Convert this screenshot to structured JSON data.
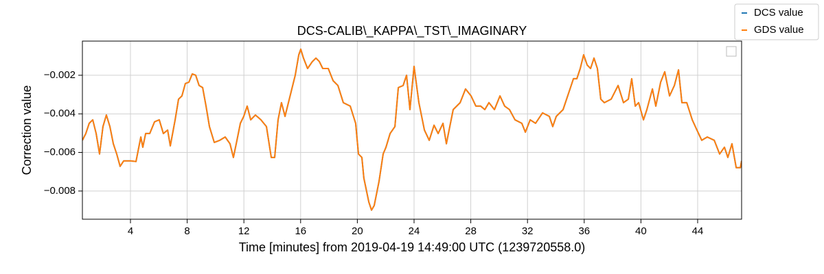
{
  "chart_data": {
    "type": "line",
    "title": "DCS-CALIB\\_KAPPA\\_TST\\_IMAGINARY",
    "x_label": "Time [minutes] from 2019-04-19 14:49:00 UTC (1239720558.0)",
    "y_label": "Correction value",
    "xlim": [
      0.61,
      47.1
    ],
    "ylim": [
      -0.00946,
      -0.00023
    ],
    "xticks": [
      4,
      8,
      12,
      16,
      20,
      24,
      28,
      32,
      36,
      40,
      44
    ],
    "yticks": [
      {
        "value": -0.002,
        "label": "−0.002"
      },
      {
        "value": -0.004,
        "label": "−0.004"
      },
      {
        "value": -0.006,
        "label": "−0.006"
      },
      {
        "value": -0.008,
        "label": "−0.008"
      }
    ],
    "grid": true,
    "legend": "upper right",
    "x": [
      0.61,
      0.85,
      1.09,
      1.34,
      1.58,
      1.82,
      2.06,
      2.3,
      2.55,
      2.79,
      3.03,
      3.27,
      3.52,
      4.0,
      4.39,
      4.73,
      4.87,
      5.07,
      5.36,
      5.7,
      6.03,
      6.32,
      6.62,
      6.81,
      7.15,
      7.39,
      7.63,
      7.87,
      8.12,
      8.36,
      8.6,
      8.84,
      9.09,
      9.33,
      9.57,
      9.91,
      10.3,
      10.68,
      11.02,
      11.26,
      11.51,
      11.75,
      11.99,
      12.23,
      12.48,
      12.81,
      13.2,
      13.59,
      13.93,
      14.17,
      14.41,
      14.65,
      14.9,
      15.14,
      15.38,
      15.62,
      15.87,
      16.01,
      16.2,
      16.49,
      16.83,
      17.08,
      17.32,
      17.56,
      17.95,
      18.29,
      18.63,
      19.01,
      19.5,
      19.88,
      20.08,
      20.32,
      20.46,
      20.81,
      21.0,
      21.19,
      21.53,
      21.82,
      22.02,
      22.31,
      22.65,
      22.89,
      23.23,
      23.47,
      23.71,
      24.0,
      24.34,
      24.73,
      25.07,
      25.41,
      25.7,
      26.04,
      26.28,
      26.76,
      27.25,
      27.63,
      28.02,
      28.36,
      28.7,
      28.99,
      29.28,
      29.67,
      30.06,
      30.39,
      30.73,
      31.12,
      31.6,
      31.85,
      32.19,
      32.57,
      33.06,
      33.54,
      33.78,
      34.03,
      34.51,
      35.0,
      35.24,
      35.48,
      35.72,
      35.96,
      36.21,
      36.45,
      36.69,
      36.93,
      37.17,
      37.42,
      37.9,
      38.39,
      38.77,
      39.11,
      39.35,
      39.6,
      39.84,
      40.18,
      40.42,
      40.81,
      41.05,
      41.39,
      41.68,
      42.02,
      42.36,
      42.65,
      42.89,
      43.23,
      43.62,
      43.95,
      44.29,
      44.68,
      45.17,
      45.55,
      45.89,
      46.13,
      46.42,
      46.72,
      47.01,
      47.1
    ],
    "series": [
      {
        "name": "DCS value",
        "color": "#1f77b4",
        "values": [
          -0.00537,
          -0.00502,
          -0.00449,
          -0.00431,
          -0.00502,
          -0.00608,
          -0.00466,
          -0.00406,
          -0.00466,
          -0.00555,
          -0.00608,
          -0.00672,
          -0.00644,
          -0.00644,
          -0.00647,
          -0.0052,
          -0.00573,
          -0.00502,
          -0.00502,
          -0.00441,
          -0.00431,
          -0.00502,
          -0.00484,
          -0.00566,
          -0.00431,
          -0.00324,
          -0.00307,
          -0.00243,
          -0.00236,
          -0.00193,
          -0.002,
          -0.00253,
          -0.00264,
          -0.0036,
          -0.00466,
          -0.00548,
          -0.00537,
          -0.0052,
          -0.00555,
          -0.00626,
          -0.00537,
          -0.00449,
          -0.00413,
          -0.0036,
          -0.00431,
          -0.00406,
          -0.00431,
          -0.00466,
          -0.00626,
          -0.00626,
          -0.00431,
          -0.00342,
          -0.00413,
          -0.00342,
          -0.00271,
          -0.002,
          -0.00094,
          -0.00065,
          -0.00111,
          -0.00165,
          -0.00129,
          -0.00111,
          -0.00129,
          -0.00165,
          -0.00165,
          -0.00228,
          -0.00253,
          -0.00342,
          -0.0036,
          -0.00449,
          -0.00608,
          -0.00626,
          -0.00733,
          -0.00857,
          -0.00899,
          -0.00875,
          -0.0075,
          -0.00608,
          -0.00573,
          -0.00502,
          -0.00466,
          -0.00264,
          -0.00253,
          -0.002,
          -0.00378,
          -0.00154,
          -0.00342,
          -0.00484,
          -0.00537,
          -0.00459,
          -0.00502,
          -0.00449,
          -0.00555,
          -0.00378,
          -0.00342,
          -0.00271,
          -0.00307,
          -0.0036,
          -0.0036,
          -0.00378,
          -0.00342,
          -0.00378,
          -0.00307,
          -0.0036,
          -0.00378,
          -0.00431,
          -0.00449,
          -0.00495,
          -0.00431,
          -0.00449,
          -0.00395,
          -0.00413,
          -0.00466,
          -0.00413,
          -0.00378,
          -0.00271,
          -0.00218,
          -0.00218,
          -0.00165,
          -0.00094,
          -0.00147,
          -0.00165,
          -0.00111,
          -0.00165,
          -0.00324,
          -0.00342,
          -0.00324,
          -0.00253,
          -0.00342,
          -0.00324,
          -0.00218,
          -0.0036,
          -0.00342,
          -0.00431,
          -0.00378,
          -0.00271,
          -0.0036,
          -0.00236,
          -0.00182,
          -0.00307,
          -0.00253,
          -0.00172,
          -0.00342,
          -0.00342,
          -0.00431,
          -0.00484,
          -0.00537,
          -0.0052,
          -0.00537,
          -0.00608,
          -0.00573,
          -0.00626,
          -0.00555,
          -0.00679,
          -0.00679,
          -0.00644
        ]
      },
      {
        "name": "GDS value",
        "color": "#ff7f0e",
        "values": [
          -0.00537,
          -0.00502,
          -0.00449,
          -0.00431,
          -0.00502,
          -0.00608,
          -0.00466,
          -0.00406,
          -0.00466,
          -0.00555,
          -0.00608,
          -0.00672,
          -0.00644,
          -0.00644,
          -0.00647,
          -0.0052,
          -0.00573,
          -0.00502,
          -0.00502,
          -0.00441,
          -0.00431,
          -0.00502,
          -0.00484,
          -0.00566,
          -0.00431,
          -0.00324,
          -0.00307,
          -0.00243,
          -0.00236,
          -0.00193,
          -0.002,
          -0.00253,
          -0.00264,
          -0.0036,
          -0.00466,
          -0.00548,
          -0.00537,
          -0.0052,
          -0.00555,
          -0.00626,
          -0.00537,
          -0.00449,
          -0.00413,
          -0.0036,
          -0.00431,
          -0.00406,
          -0.00431,
          -0.00466,
          -0.00626,
          -0.00626,
          -0.00431,
          -0.00342,
          -0.00413,
          -0.00342,
          -0.00271,
          -0.002,
          -0.00094,
          -0.00065,
          -0.00111,
          -0.00165,
          -0.00129,
          -0.00111,
          -0.00129,
          -0.00165,
          -0.00165,
          -0.00228,
          -0.00253,
          -0.00342,
          -0.0036,
          -0.00449,
          -0.00608,
          -0.00626,
          -0.00733,
          -0.00857,
          -0.00899,
          -0.00875,
          -0.0075,
          -0.00608,
          -0.00573,
          -0.00502,
          -0.00466,
          -0.00264,
          -0.00253,
          -0.002,
          -0.00378,
          -0.00154,
          -0.00342,
          -0.00484,
          -0.00537,
          -0.00459,
          -0.00502,
          -0.00449,
          -0.00555,
          -0.00378,
          -0.00342,
          -0.00271,
          -0.00307,
          -0.0036,
          -0.0036,
          -0.00378,
          -0.00342,
          -0.00378,
          -0.00307,
          -0.0036,
          -0.00378,
          -0.00431,
          -0.00449,
          -0.00495,
          -0.00431,
          -0.00449,
          -0.00395,
          -0.00413,
          -0.00466,
          -0.00413,
          -0.00378,
          -0.00271,
          -0.00218,
          -0.00218,
          -0.00165,
          -0.00094,
          -0.00147,
          -0.00165,
          -0.00111,
          -0.00165,
          -0.00324,
          -0.00342,
          -0.00324,
          -0.00253,
          -0.00342,
          -0.00324,
          -0.00218,
          -0.0036,
          -0.00342,
          -0.00431,
          -0.00378,
          -0.00271,
          -0.0036,
          -0.00236,
          -0.00182,
          -0.00307,
          -0.00253,
          -0.00172,
          -0.00342,
          -0.00342,
          -0.00431,
          -0.00484,
          -0.00537,
          -0.0052,
          -0.00537,
          -0.00608,
          -0.00573,
          -0.00626,
          -0.00555,
          -0.00679,
          -0.00679,
          -0.00644
        ]
      }
    ]
  }
}
